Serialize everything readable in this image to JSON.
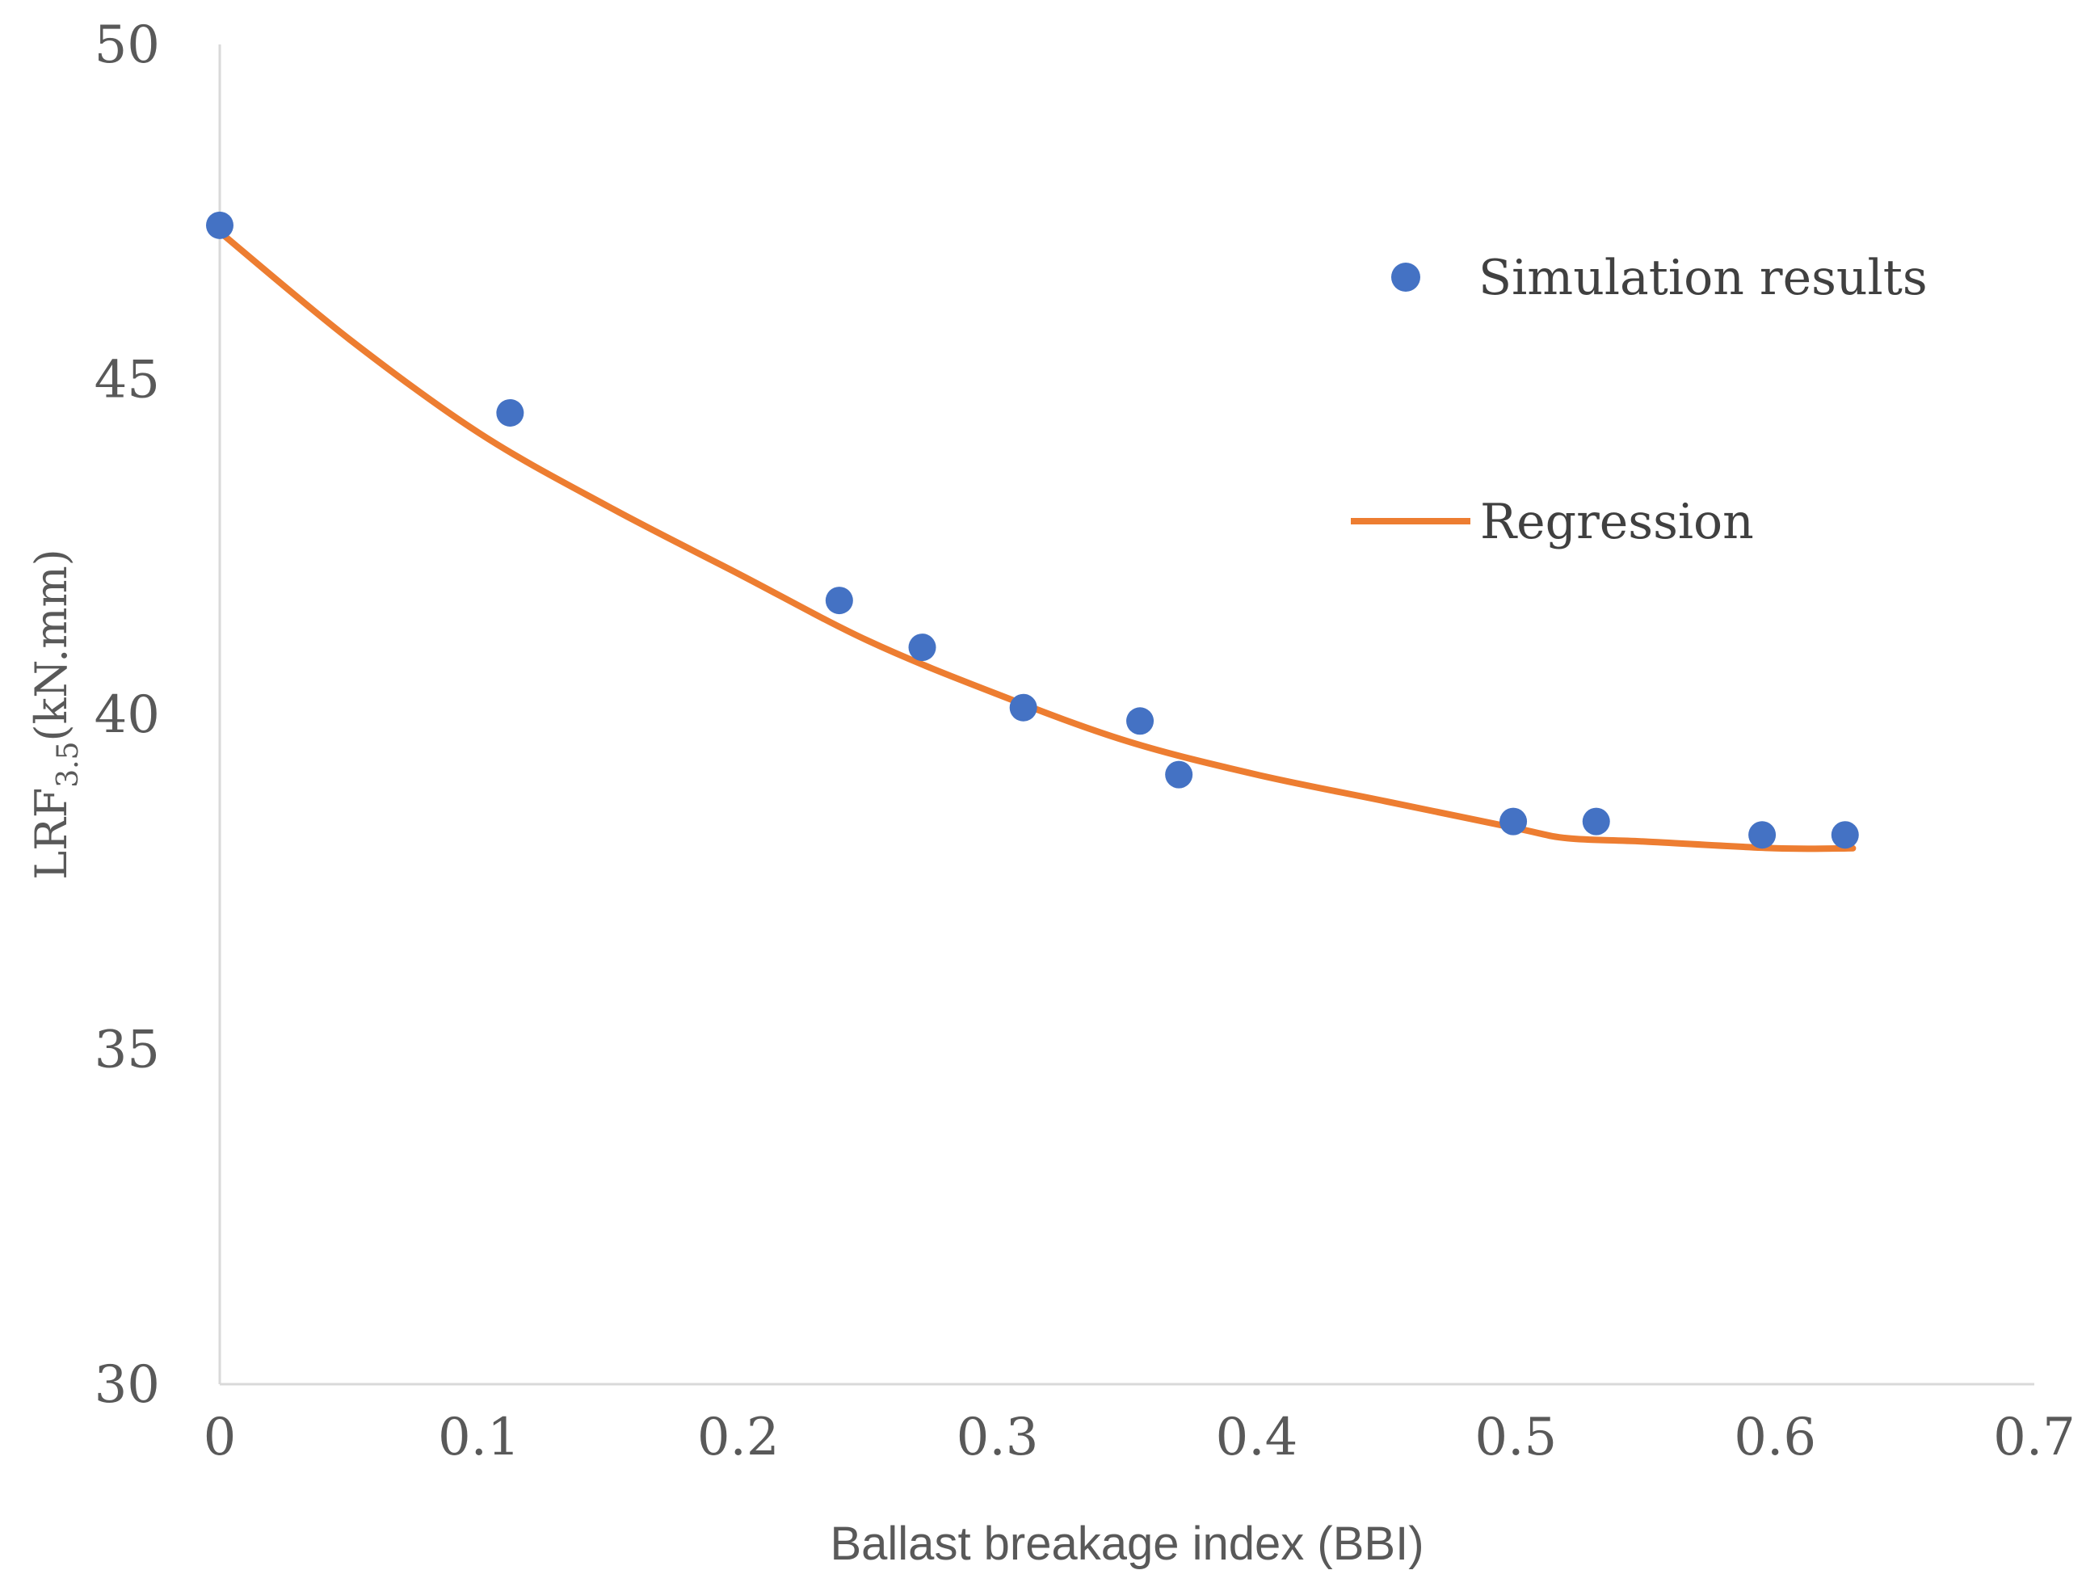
{
  "chart_data": {
    "type": "scatter",
    "title": "",
    "xlabel": "Ballast breakage index (BBI)",
    "ylabel": {
      "prefix": "LRF",
      "subscript": "3.5",
      "suffix": "(kN.mm)"
    },
    "xlim": [
      0,
      0.7
    ],
    "ylim": [
      30,
      50
    ],
    "x_ticks": [
      "0",
      "0.1",
      "0.2",
      "0.3",
      "0.4",
      "0.5",
      "0.6",
      "0.7"
    ],
    "y_ticks": [
      "30",
      "35",
      "40",
      "45",
      "50"
    ],
    "grid": false,
    "legend_position": "top-right",
    "series": [
      {
        "name": "Simulation results",
        "kind": "scatter",
        "color": "#4472C4",
        "x": [
          0.0,
          0.112,
          0.239,
          0.271,
          0.31,
          0.355,
          0.37,
          0.499,
          0.531,
          0.595,
          0.627
        ],
        "y": [
          47.3,
          44.5,
          41.7,
          41.0,
          40.1,
          39.9,
          39.1,
          38.4,
          38.4,
          38.2,
          38.2
        ]
      },
      {
        "name": "Regression",
        "kind": "line",
        "color": "#ED7D31",
        "x": [
          0.0,
          0.05,
          0.1,
          0.15,
          0.2,
          0.25,
          0.3,
          0.35,
          0.4,
          0.45,
          0.5,
          0.52,
          0.55,
          0.6,
          0.63
        ],
        "y": [
          47.2,
          45.6,
          44.2,
          43.1,
          42.1,
          41.1,
          40.3,
          39.6,
          39.1,
          38.7,
          38.3,
          38.15,
          38.1,
          38.0,
          38.0
        ]
      }
    ]
  }
}
